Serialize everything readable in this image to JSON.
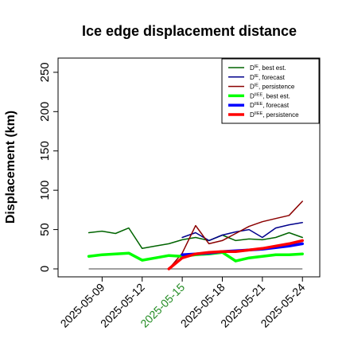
{
  "chart_data": {
    "type": "line",
    "title": "Ice edge displacement distance",
    "xlabel": "",
    "ylabel": "Displacement (km)",
    "xlim": [
      "2025-05-06",
      "2025-05-25"
    ],
    "ylim": [
      0,
      260
    ],
    "yticks": [
      0,
      50,
      100,
      150,
      200,
      250
    ],
    "xticks": [
      {
        "date": "2025-05-09",
        "label": "2025-05-09",
        "color": "#000000"
      },
      {
        "date": "2025-05-12",
        "label": "2025-05-12",
        "color": "#000000"
      },
      {
        "date": "2025-05-15",
        "label": "2025-05-15",
        "color": "#228b22"
      },
      {
        "date": "2025-05-18",
        "label": "2025-05-18",
        "color": "#000000"
      },
      {
        "date": "2025-05-21",
        "label": "2025-05-21",
        "color": "#000000"
      },
      {
        "date": "2025-05-24",
        "label": "2025-05-24",
        "color": "#000000"
      }
    ],
    "grid": false,
    "legend_position": "top-right",
    "zero_line": {
      "from": "2025-05-08",
      "to": "2025-05-24",
      "value": 0,
      "color": "#808080"
    },
    "series": [
      {
        "name": "D^IE, best est.",
        "base": "D",
        "sup": "IE",
        "rest": ", best est.",
        "color": "#006400",
        "width": 1.5,
        "x": [
          "2025-05-08",
          "2025-05-09",
          "2025-05-10",
          "2025-05-11",
          "2025-05-12",
          "2025-05-13",
          "2025-05-14",
          "2025-05-15",
          "2025-05-16",
          "2025-05-17",
          "2025-05-18",
          "2025-05-19",
          "2025-05-20",
          "2025-05-21",
          "2025-05-22",
          "2025-05-23",
          "2025-05-24"
        ],
        "y": [
          46,
          48,
          45,
          52,
          26,
          29,
          32,
          37,
          40,
          36,
          43,
          36,
          38,
          37,
          40,
          46,
          40
        ]
      },
      {
        "name": "D^IE, forecast",
        "base": "D",
        "sup": "IE",
        "rest": ", forecast",
        "color": "#00008b",
        "width": 1.5,
        "x": [
          "2025-05-15",
          "2025-05-16",
          "2025-05-17",
          "2025-05-18",
          "2025-05-19",
          "2025-05-20",
          "2025-05-21",
          "2025-05-22",
          "2025-05-23",
          "2025-05-24"
        ],
        "y": [
          40,
          46,
          36,
          43,
          47,
          50,
          40,
          52,
          56,
          59
        ]
      },
      {
        "name": "D^IE, persistence",
        "base": "D",
        "sup": "IE",
        "rest": ", persistence",
        "color": "#8b0000",
        "width": 1.5,
        "x": [
          "2025-05-14",
          "2025-05-15",
          "2025-05-16",
          "2025-05-17",
          "2025-05-18",
          "2025-05-19",
          "2025-05-20",
          "2025-05-21",
          "2025-05-22",
          "2025-05-23",
          "2025-05-24"
        ],
        "y": [
          0,
          20,
          55,
          32,
          36,
          45,
          54,
          60,
          64,
          68,
          86
        ]
      },
      {
        "name": "D^IIEE, best est.",
        "base": "D",
        "sup": "IIEE",
        "rest": ", best est.",
        "color": "#00ff00",
        "width": 3.5,
        "x": [
          "2025-05-08",
          "2025-05-09",
          "2025-05-10",
          "2025-05-11",
          "2025-05-12",
          "2025-05-13",
          "2025-05-14",
          "2025-05-15",
          "2025-05-16",
          "2025-05-17",
          "2025-05-18",
          "2025-05-19",
          "2025-05-20",
          "2025-05-21",
          "2025-05-22",
          "2025-05-23",
          "2025-05-24"
        ],
        "y": [
          16,
          18,
          19,
          20,
          11,
          14,
          17,
          16,
          18,
          19,
          21,
          10,
          14,
          16,
          18,
          18,
          19
        ]
      },
      {
        "name": "D^IIEE, forecast",
        "base": "D",
        "sup": "IIEE",
        "rest": ", forecast",
        "color": "#0000ff",
        "width": 3.5,
        "x": [
          "2025-05-15",
          "2025-05-16",
          "2025-05-17",
          "2025-05-18",
          "2025-05-19",
          "2025-05-20",
          "2025-05-21",
          "2025-05-22",
          "2025-05-23",
          "2025-05-24"
        ],
        "y": [
          18,
          19,
          20,
          22,
          23,
          24,
          25,
          27,
          29,
          32
        ]
      },
      {
        "name": "D^IIEE, persistence",
        "base": "D",
        "sup": "IIEE",
        "rest": ", persistence",
        "color": "#ff0000",
        "width": 3.5,
        "x": [
          "2025-05-14",
          "2025-05-15",
          "2025-05-16",
          "2025-05-17",
          "2025-05-18",
          "2025-05-19",
          "2025-05-20",
          "2025-05-21",
          "2025-05-22",
          "2025-05-23",
          "2025-05-24"
        ],
        "y": [
          0,
          14,
          19,
          21,
          22,
          22,
          24,
          26,
          29,
          32,
          36
        ]
      }
    ]
  }
}
